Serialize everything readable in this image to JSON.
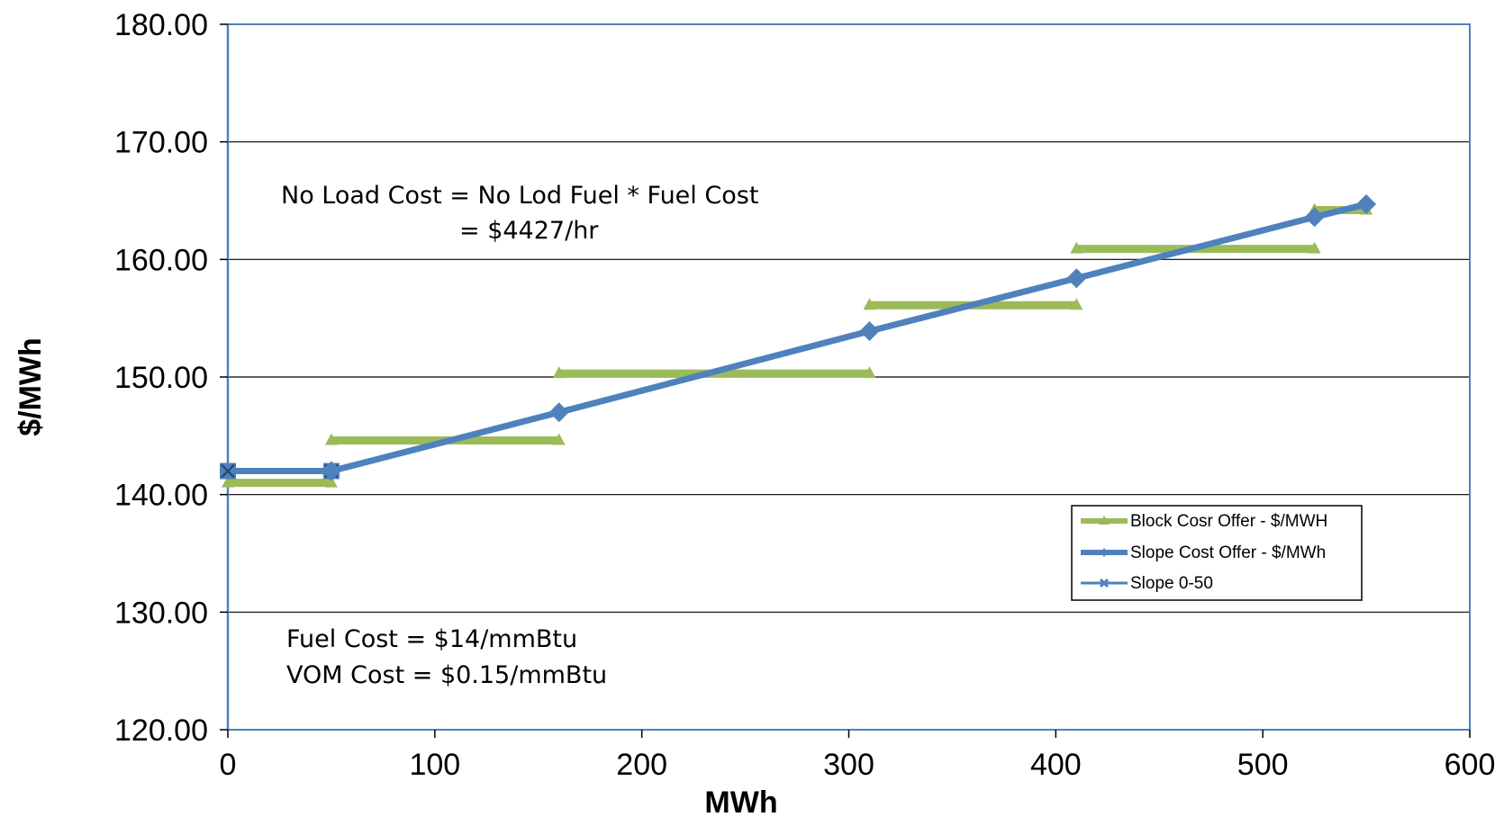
{
  "chart_data": {
    "type": "line",
    "xlabel": "MWh",
    "ylabel": "$/MWh",
    "xlim": [
      0,
      600
    ],
    "ylim": [
      120,
      180
    ],
    "x_ticks": [
      "0",
      "100",
      "200",
      "300",
      "400",
      "500",
      "600"
    ],
    "y_ticks": [
      "120.00",
      "130.00",
      "140.00",
      "150.00",
      "160.00",
      "170.00",
      "180.00"
    ],
    "grid": "horizontal major gridlines",
    "legend_position": "lower-right",
    "series": [
      {
        "name": "Block Cosr Offer - $/MWH",
        "style": "step",
        "color": "#9BBB59",
        "marker": "triangle",
        "segments": [
          {
            "x": [
              0,
              50
            ],
            "y": 141
          },
          {
            "x": [
              50,
              160
            ],
            "y": 144.6
          },
          {
            "x": [
              160,
              310
            ],
            "y": 150.3
          },
          {
            "x": [
              310,
              410
            ],
            "y": 156.1
          },
          {
            "x": [
              410,
              525
            ],
            "y": 160.9
          },
          {
            "x": [
              525,
              550
            ],
            "y": 164.2
          }
        ]
      },
      {
        "name": "Slope Cost Offer - $/MWh",
        "style": "line",
        "color": "#4F81BD",
        "marker": "diamond",
        "points": [
          {
            "x": 50,
            "y": 142
          },
          {
            "x": 160,
            "y": 147
          },
          {
            "x": 310,
            "y": 153.9
          },
          {
            "x": 410,
            "y": 158.4
          },
          {
            "x": 525,
            "y": 163.6
          },
          {
            "x": 550,
            "y": 164.7
          }
        ]
      },
      {
        "name": "Slope 0-50",
        "style": "line",
        "color": "#4F81BD",
        "marker": "x",
        "points": [
          {
            "x": 0,
            "y": 142
          },
          {
            "x": 50,
            "y": 142
          }
        ]
      }
    ],
    "annotations": [
      {
        "line1": "No Load Cost = No Lod Fuel * Fuel Cost",
        "line2": "= $4427/hr"
      },
      {
        "line1": "Fuel Cost = $14/mmBtu",
        "line2": "VOM Cost = $0.15/mmBtu"
      }
    ]
  }
}
